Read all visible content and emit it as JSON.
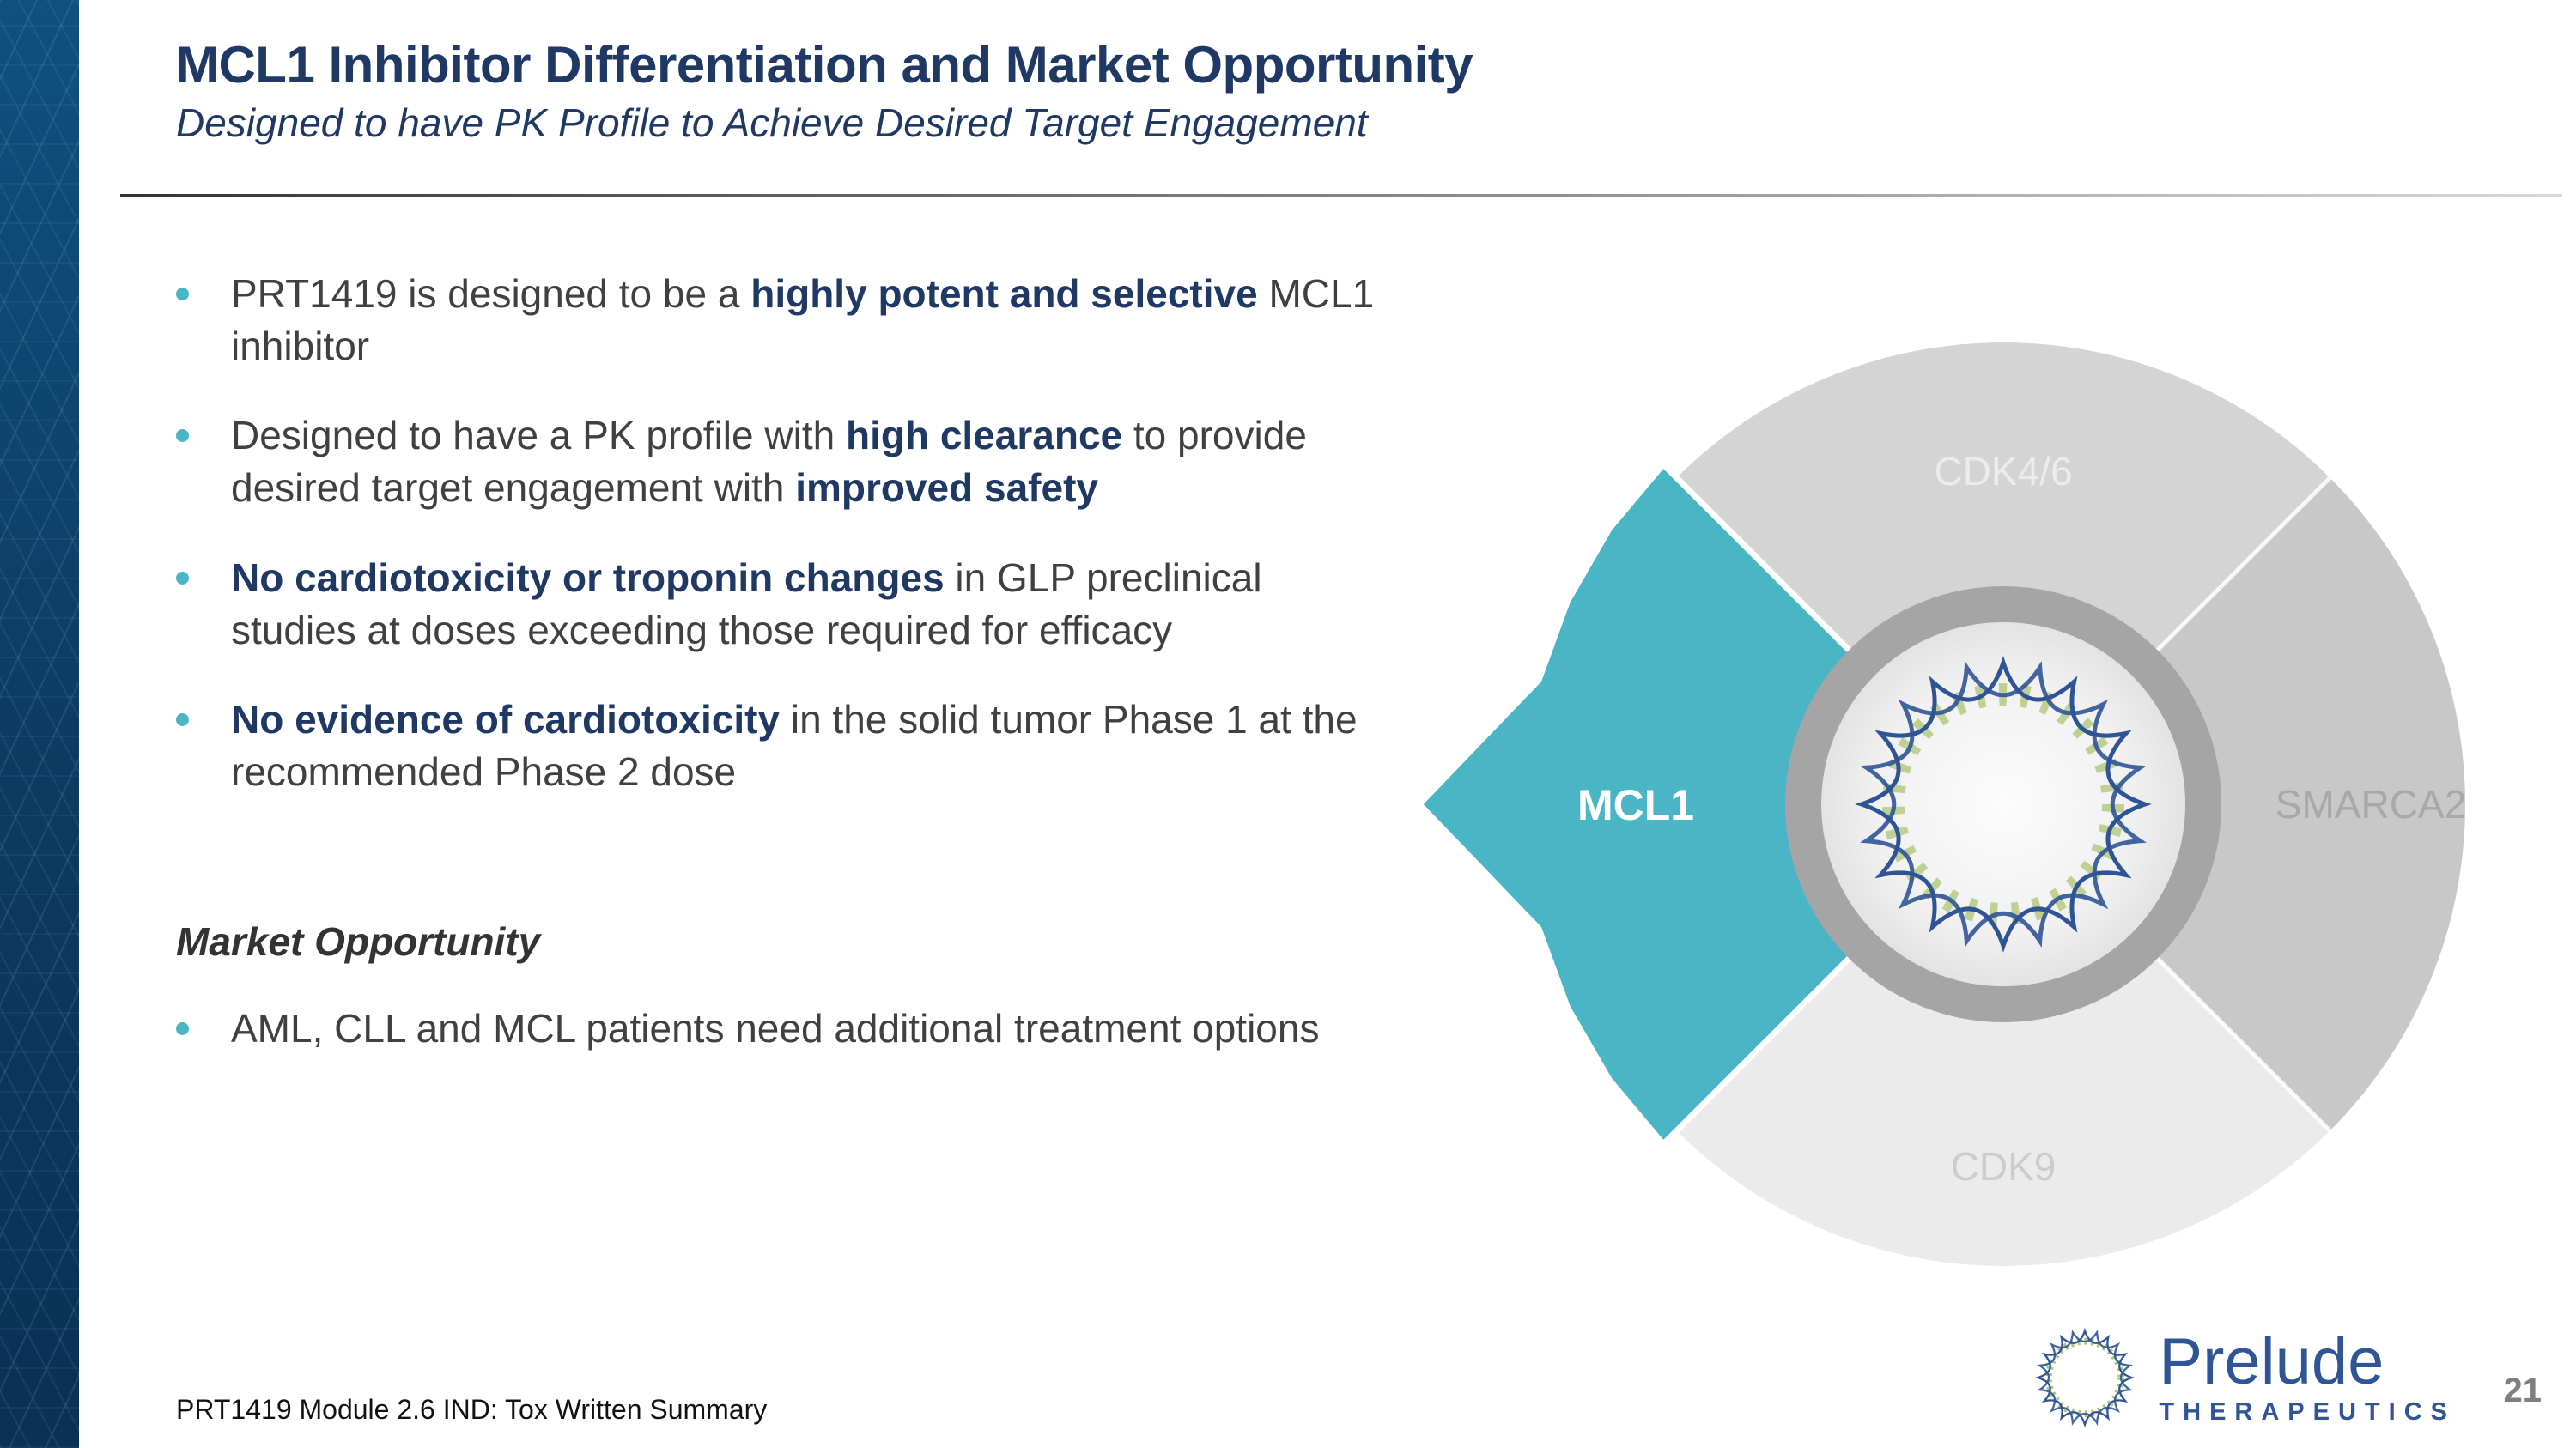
{
  "slide": {
    "title": "MCL1 Inhibitor Differentiation and Market Opportunity",
    "subtitle": "Designed to have PK Profile to Achieve Desired Target Engagement",
    "footer": "PRT1419 Module 2.6 IND: Tox Written Summary",
    "page_number": "21"
  },
  "bullets": [
    {
      "segments": [
        {
          "text": "PRT1419 is designed to be a ",
          "bold": false
        },
        {
          "text": "highly potent and selective",
          "bold": true
        },
        {
          "text": " MCL1 inhibitor",
          "bold": false
        }
      ]
    },
    {
      "segments": [
        {
          "text": "Designed to have a PK profile with ",
          "bold": false
        },
        {
          "text": "high clearance",
          "bold": true
        },
        {
          "text": " to provide desired target engagement with ",
          "bold": false
        },
        {
          "text": "improved safety",
          "bold": true
        }
      ]
    },
    {
      "segments": [
        {
          "text": "No cardiotoxicity or troponin changes",
          "bold": true
        },
        {
          "text": " in GLP preclinical studies at doses exceeding those required for efficacy",
          "bold": false
        }
      ]
    },
    {
      "segments": [
        {
          "text": "No evidence of cardiotoxicity",
          "bold": true
        },
        {
          "text": " in the solid tumor Phase 1 at the recommended Phase 2 dose",
          "bold": false
        }
      ]
    }
  ],
  "market": {
    "heading": "Market Opportunity",
    "bullets": [
      {
        "segments": [
          {
            "text": "AML, CLL and MCL patients need additional treatment options",
            "bold": false
          }
        ]
      }
    ]
  },
  "diagram": {
    "center_icon": "circular-dna-icon",
    "segments": [
      {
        "label": "CDK4/6",
        "color": "#d4d4d4",
        "text_color": "#ececec"
      },
      {
        "label": "SMARCA2",
        "color": "#c8c8c8",
        "text_color": "#a8a8a8"
      },
      {
        "label": "CDK9",
        "color": "#ebebeb",
        "text_color": "#cccccc"
      },
      {
        "label": "MCL1",
        "color": "#4AB5C4",
        "text_color": "#ffffff"
      }
    ]
  },
  "logo": {
    "name": "Prelude",
    "sub": "THERAPEUTICS",
    "icon": "prelude-star-icon"
  },
  "colors": {
    "accent_teal": "#4AB5C4",
    "navy": "#1F3864",
    "body_text": "#404040",
    "brand_blue": "#2F5597",
    "band_blue": "#0C3C64"
  }
}
